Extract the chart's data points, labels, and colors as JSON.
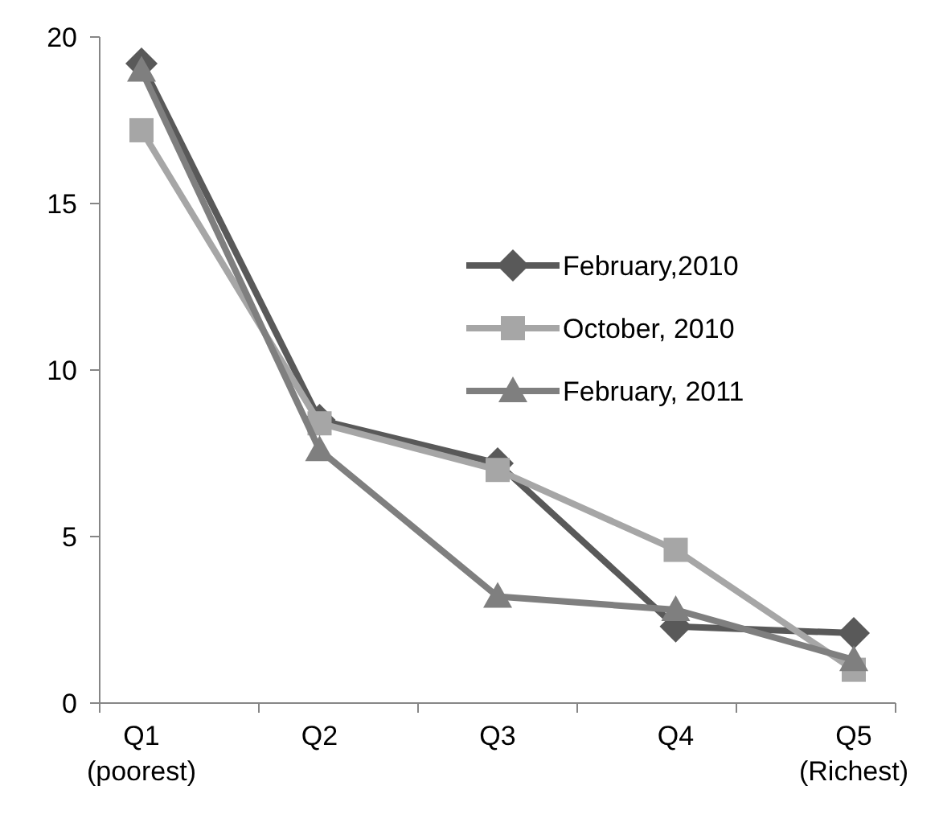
{
  "chart_data": {
    "type": "line",
    "categories": [
      "Q1\n(poorest)",
      "Q2",
      "Q3",
      "Q4",
      "Q5\n(Richest)"
    ],
    "series": [
      {
        "name": "February,2010",
        "color": "#595959",
        "marker": "diamond",
        "values": [
          19.2,
          8.5,
          7.2,
          2.3,
          2.1
        ]
      },
      {
        "name": "October, 2010",
        "color": "#a6a6a6",
        "marker": "square",
        "values": [
          17.2,
          8.4,
          7.0,
          4.6,
          1.0
        ]
      },
      {
        "name": "February, 2011",
        "color": "#7f7f7f",
        "marker": "triangle",
        "values": [
          19.0,
          7.6,
          3.2,
          2.8,
          1.3
        ]
      }
    ],
    "ylim": [
      0,
      20
    ],
    "yticks": [
      0,
      5,
      10,
      15,
      20
    ],
    "legend": "top right",
    "grid": false
  }
}
